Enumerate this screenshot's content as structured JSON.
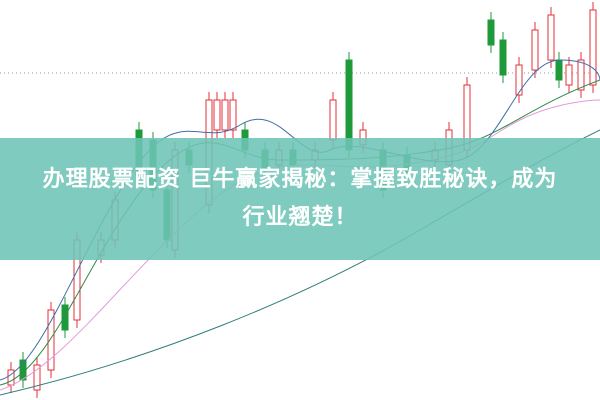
{
  "article": {
    "title_line1": "办理股票配资 巨牛赢家揭秘：掌握致胜秘诀，成为",
    "title_line2": "行业翘楚！"
  },
  "colors": {
    "banner": "#6ec4b6",
    "candle_up": "#e0303a",
    "candle_down": "#1f9a3a",
    "ma_pink": "#e69ad8",
    "ma_green": "#2f8a4a",
    "ma_blue": "#3d6fa8",
    "ma_teal": "#3a9a9a"
  }
}
